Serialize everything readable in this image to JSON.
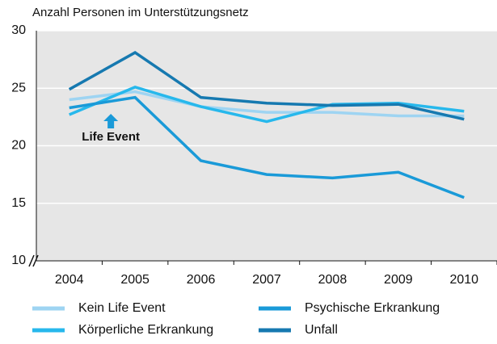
{
  "chart_data": {
    "type": "line",
    "y_label": "Anzahl Personen im Unterstützungsnetz",
    "categories": [
      "2004",
      "2005",
      "2006",
      "2007",
      "2008",
      "2009",
      "2010"
    ],
    "series": [
      {
        "name": "Kein Life Event",
        "color": "#9ed4f2",
        "values": [
          24.0,
          24.7,
          23.4,
          22.9,
          22.9,
          22.6,
          22.6
        ]
      },
      {
        "name": "Körperliche Erkrankung",
        "color": "#27b8ec",
        "values": [
          22.7,
          25.1,
          23.4,
          22.1,
          23.6,
          23.7,
          23.0
        ]
      },
      {
        "name": "Psychische Erkrankung",
        "color": "#1a9ad8",
        "values": [
          23.3,
          24.2,
          18.7,
          17.5,
          17.2,
          17.7,
          15.5
        ]
      },
      {
        "name": "Unfall",
        "color": "#1679b0",
        "values": [
          24.9,
          28.1,
          24.2,
          23.7,
          23.5,
          23.6,
          22.3
        ]
      }
    ],
    "annotation": "Life Event",
    "ylim": [
      10,
      30
    ],
    "yticks": [
      10,
      15,
      20,
      25,
      30
    ],
    "grid": true
  }
}
